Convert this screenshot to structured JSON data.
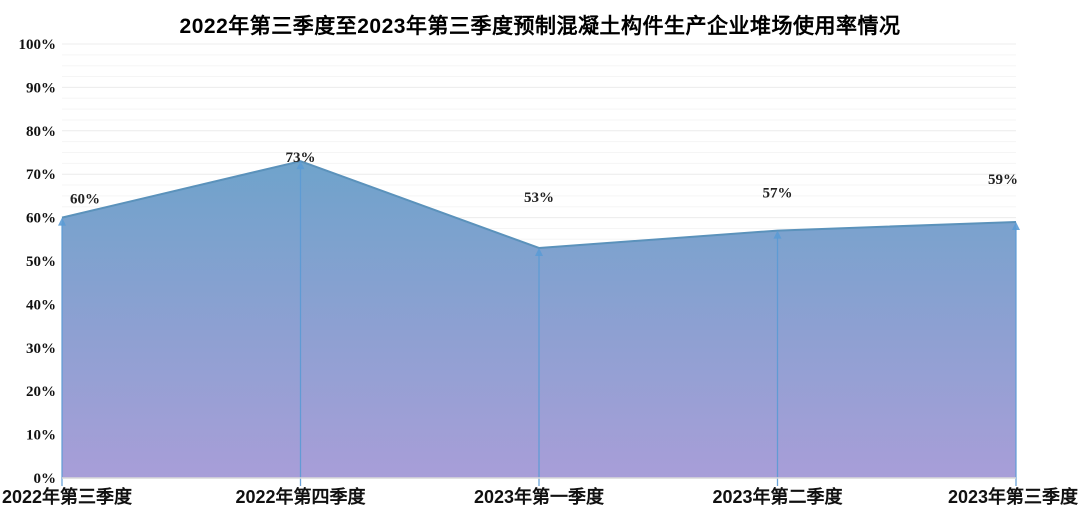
{
  "chart_data": {
    "type": "area",
    "title": "2022年第三季度至2023年第三季度预制混凝土构件生产企业堆场使用率情况",
    "categories": [
      "2022年第三季度",
      "2022年第四季度",
      "2023年第一季度",
      "2023年第二季度",
      "2023年第三季度"
    ],
    "values": [
      60,
      73,
      53,
      57,
      59
    ],
    "data_labels": [
      "60%",
      "73%",
      "53%",
      "57%",
      "59%"
    ],
    "xlabel": "",
    "ylabel": "",
    "ylim": [
      0,
      100
    ],
    "y_ticks": [
      "0%",
      "10%",
      "20%",
      "30%",
      "40%",
      "50%",
      "60%",
      "70%",
      "80%",
      "90%",
      "100%"
    ],
    "y_tick_values": [
      0,
      10,
      20,
      30,
      40,
      50,
      60,
      70,
      80,
      90,
      100
    ],
    "grid": "horizontal, major every 10%, faint minor every 2.5%",
    "legend": "none",
    "label_dx": [
      23,
      0,
      0,
      0,
      -13
    ],
    "label_dy": [
      -19,
      -4,
      -51,
      -38,
      -43
    ],
    "colors": {
      "area_gradient_top": "#6fa3cb",
      "area_gradient_bottom": "#a89ed8",
      "area_stroke": "#5b92bb",
      "drop_line": "#5b9bd5",
      "minor_gridline": "#f5f5f5",
      "major_gridline": "#ececec",
      "axis_line": "#d9d9d9",
      "title_color": "#000000",
      "label_color": "#111111"
    }
  }
}
